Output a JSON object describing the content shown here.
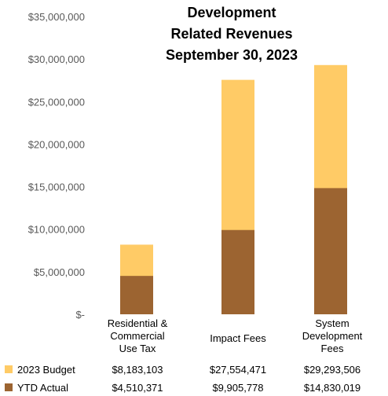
{
  "chart_data": {
    "type": "bar",
    "stacked": false,
    "overlay": true,
    "title_lines": [
      "Development",
      "Related Revenues",
      "September 30, 2023"
    ],
    "categories": [
      "Residential &\nCommercial\nUse Tax",
      "Impact Fees",
      "System\nDevelopment\nFees"
    ],
    "series": [
      {
        "name": "2023 Budget",
        "color": "#FFCB66",
        "values": [
          8183103,
          27554471,
          29293506
        ],
        "labels": [
          "$8,183,103",
          "$27,554,471",
          "$29,293,506"
        ]
      },
      {
        "name": "YTD Actual",
        "color": "#9C6431",
        "values": [
          4510371,
          9905778,
          14830019
        ],
        "labels": [
          "$4,510,371",
          "$9,905,778",
          "$14,830,019"
        ]
      }
    ],
    "ylim": [
      0,
      35000000
    ],
    "yticks": [
      0,
      5000000,
      10000000,
      15000000,
      20000000,
      25000000,
      30000000,
      35000000
    ],
    "ytick_labels": [
      "$-",
      "$5,000,000",
      "$10,000,000",
      "$15,000,000",
      "$20,000,000",
      "$25,000,000",
      "$30,000,000",
      "$35,000,000"
    ],
    "grid": false,
    "legend": "data table below chart"
  }
}
